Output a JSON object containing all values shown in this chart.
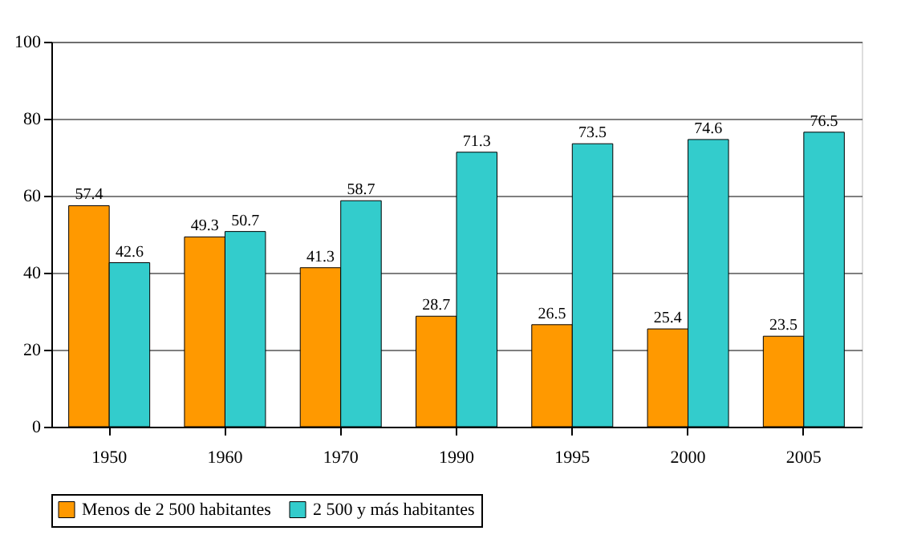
{
  "chart_data": {
    "type": "bar",
    "categories": [
      "1950",
      "1960",
      "1970",
      "1990",
      "1995",
      "2000",
      "2005"
    ],
    "series": [
      {
        "name": "Menos de 2 500 habitantes",
        "color": "#ff9900",
        "values": [
          57.4,
          49.3,
          41.3,
          28.7,
          26.5,
          25.4,
          23.5
        ]
      },
      {
        "name": "2 500 y más habitantes",
        "color": "#33cccc",
        "values": [
          42.6,
          50.7,
          58.7,
          71.3,
          73.5,
          74.6,
          76.5
        ]
      }
    ],
    "ylim": [
      0,
      100
    ],
    "yticks": [
      0,
      20,
      40,
      60,
      80,
      100
    ],
    "grid": "y",
    "legend": "bottom",
    "data_labels": true
  }
}
